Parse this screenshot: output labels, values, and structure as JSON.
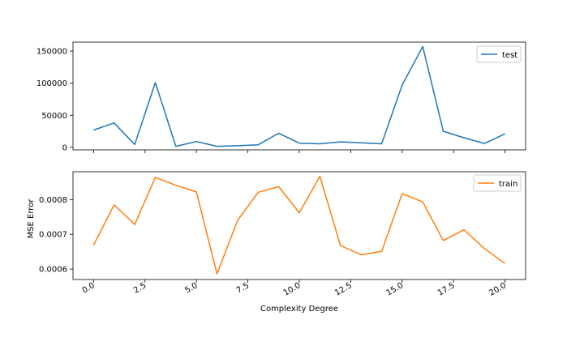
{
  "chart_data": [
    {
      "type": "line",
      "ylabel": "",
      "xlim": [
        -1,
        21
      ],
      "ylim": [
        -4000,
        164000
      ],
      "y_ticks": [
        0,
        50000,
        100000,
        150000
      ],
      "y_tick_labels": [
        "0",
        "50000",
        "100000",
        "150000"
      ],
      "x_tick_labels_visible": false,
      "grid": false,
      "legend": {
        "position": "upper-right"
      },
      "series": [
        {
          "name": "test",
          "color": "#1f77b4",
          "x": [
            0,
            1,
            2,
            3,
            4,
            5,
            6,
            7,
            8,
            9,
            10,
            11,
            12,
            13,
            14,
            15,
            16,
            17,
            18,
            19,
            20
          ],
          "values": [
            27000,
            38000,
            4500,
            101000,
            1500,
            9000,
            1500,
            2500,
            4000,
            22000,
            6500,
            5500,
            8500,
            7000,
            5500,
            97000,
            157000,
            25000,
            15000,
            6000,
            21000
          ]
        }
      ]
    },
    {
      "type": "line",
      "xlabel": "Complexity Degree",
      "ylabel": "MSE Error",
      "xlim": [
        -1,
        21
      ],
      "ylim": [
        0.00057,
        0.00088
      ],
      "x_ticks": [
        0,
        2.5,
        5,
        7.5,
        10,
        12.5,
        15,
        17.5,
        20
      ],
      "x_tick_labels": [
        "0.0",
        "2.5",
        "5.0",
        "7.5",
        "10.0",
        "12.5",
        "15.0",
        "17.5",
        "20.0"
      ],
      "y_ticks": [
        0.0006,
        0.0007,
        0.0008
      ],
      "y_tick_labels": [
        "0.0006",
        "0.0007",
        "0.0008"
      ],
      "grid": false,
      "legend": {
        "position": "upper-right"
      },
      "series": [
        {
          "name": "train",
          "color": "#ff7f0e",
          "x": [
            0,
            1,
            2,
            3,
            4,
            5,
            6,
            7,
            8,
            9,
            10,
            11,
            12,
            13,
            14,
            15,
            16,
            17,
            18,
            19,
            20
          ],
          "values": [
            0.000669,
            0.000785,
            0.000728,
            0.000864,
            0.000841,
            0.000822,
            0.000586,
            0.00074,
            0.000821,
            0.000837,
            0.000762,
            0.000867,
            0.000668,
            0.000641,
            0.000651,
            0.000817,
            0.000793,
            0.000682,
            0.000713,
            0.000659,
            0.000616
          ]
        }
      ]
    }
  ]
}
